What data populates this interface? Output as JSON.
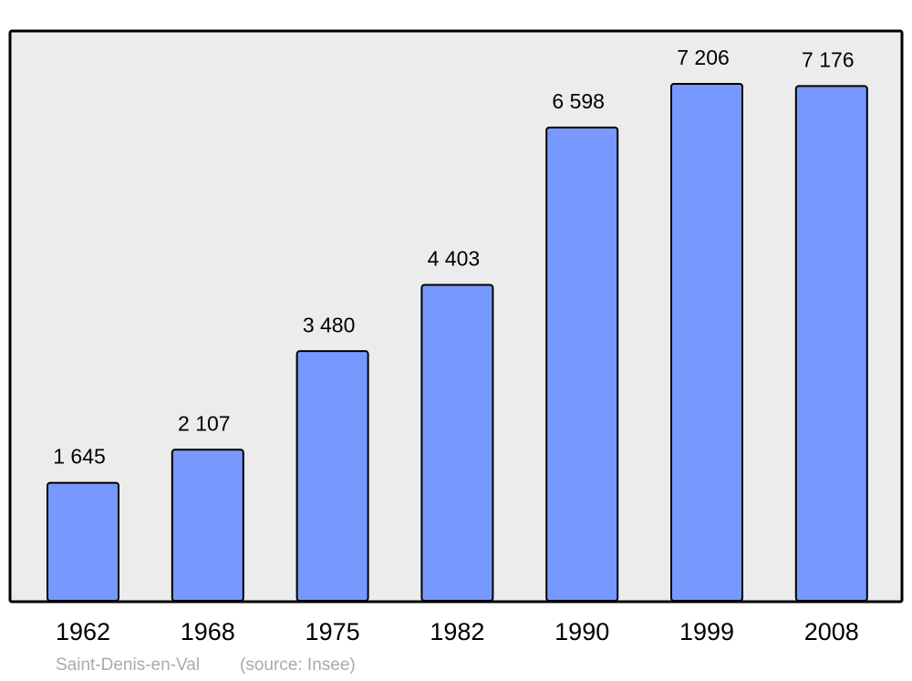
{
  "chart_data": {
    "type": "bar",
    "categories": [
      "1962",
      "1968",
      "1975",
      "1982",
      "1990",
      "1999",
      "2008"
    ],
    "values": [
      1645,
      2107,
      3480,
      4403,
      6598,
      7206,
      7176
    ],
    "value_labels": [
      "1 645",
      "2 107",
      "3 480",
      "4 403",
      "6 598",
      "7 206",
      "7 176"
    ],
    "color": "#7799ff",
    "caption": "Saint-Denis-en-Val",
    "source": "(source: Insee)"
  }
}
